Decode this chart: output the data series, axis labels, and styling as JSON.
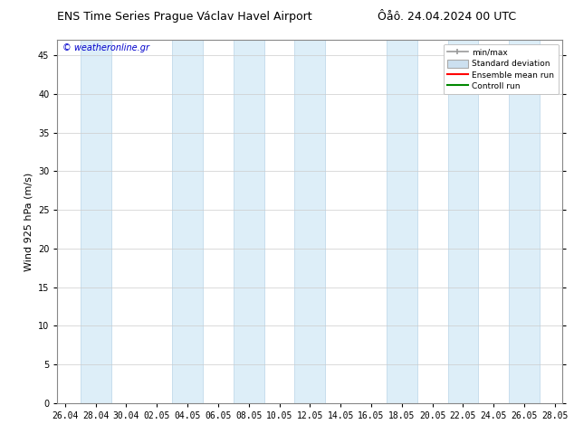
{
  "title_left": "ENS Time Series Prague Václav Havel Airport",
  "title_right": "Ôåô. 24.04.2024 00 UTC",
  "ylabel": "Wind 925 hPa (m/s)",
  "watermark": "© weatheronline.gr",
  "watermark_color": "#0000cc",
  "ylim": [
    0,
    47
  ],
  "yticks": [
    0,
    5,
    10,
    15,
    20,
    25,
    30,
    35,
    40,
    45
  ],
  "xtick_labels": [
    "26.04",
    "28.04",
    "30.04",
    "02.05",
    "04.05",
    "06.05",
    "08.05",
    "10.05",
    "12.05",
    "14.05",
    "16.05",
    "18.05",
    "20.05",
    "22.05",
    "24.05",
    "26.05",
    "28.05"
  ],
  "background_color": "#ffffff",
  "plot_bg_color": "#ffffff",
  "grid_color": "#cccccc",
  "band_color": "#ddeef8",
  "band_edge_color": "#b8d4e8",
  "title_fontsize": 9,
  "axis_fontsize": 8,
  "tick_fontsize": 7,
  "legend_items": [
    "min/max",
    "Standard deviation",
    "Ensemble mean run",
    "Controll run"
  ],
  "legend_colors": [
    "#aaaaaa",
    "#cce0f0",
    "#ff0000",
    "#00aa00"
  ],
  "band_centers_x": [
    2,
    8,
    12,
    16,
    22,
    26,
    30
  ],
  "band_hw": 1.0
}
